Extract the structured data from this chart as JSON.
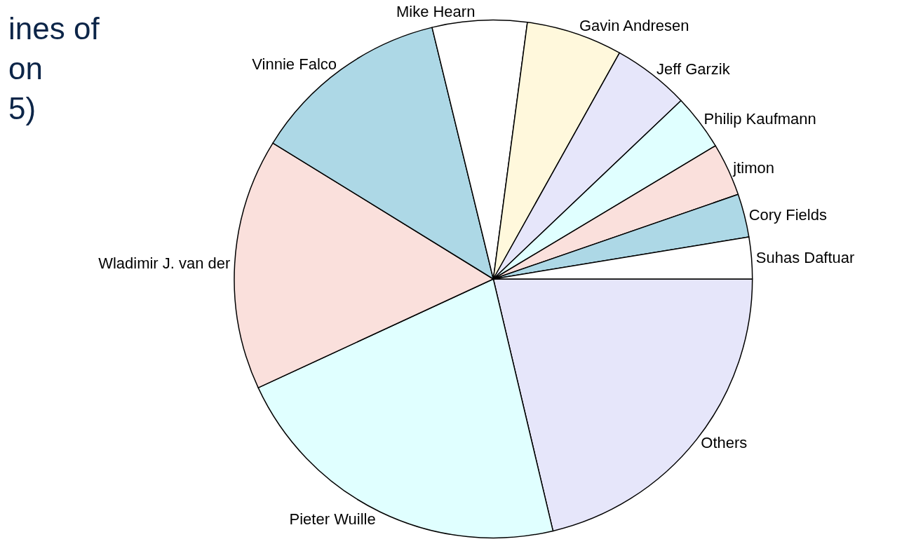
{
  "chart_data": {
    "type": "pie",
    "title": "ines of\non\n5)",
    "categories": [
      "Suhas Daftuar",
      "Cory Fields",
      "jtimon",
      "Philip Kaufmann",
      "Jeff Garzik",
      "Gavin Andresen",
      "Mike Hearn",
      "Vinnie Falco",
      "Wladimir J. van der",
      "Pieter Wuille",
      "Others"
    ],
    "values": [
      2.6,
      2.7,
      3.3,
      3.5,
      4.8,
      6.0,
      5.9,
      12.4,
      15.7,
      21.8,
      21.3
    ],
    "colors": [
      "#ffffff",
      "#add8e6",
      "#fae0dc",
      "#e0ffff",
      "#e6e6fa",
      "#fff8dc",
      "#ffffff",
      "#add8e6",
      "#fae0dc",
      "#e0ffff",
      "#e6e6fa"
    ],
    "legend": false
  }
}
